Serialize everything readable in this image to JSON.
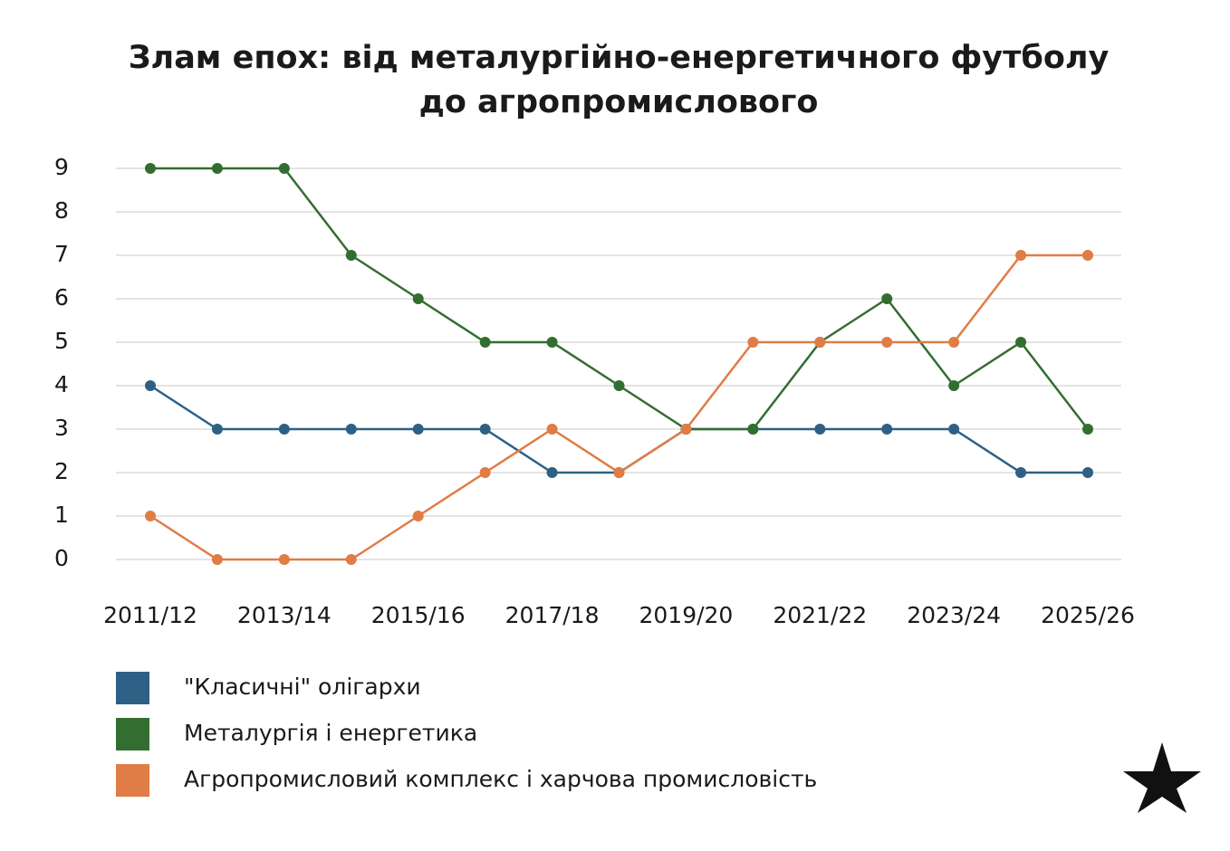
{
  "chart_data": {
    "type": "line",
    "title": [
      "Злам епох: від металургійно-енергетичного футболу",
      "до агропромислового"
    ],
    "categories": [
      "2011/12",
      null,
      "2013/14",
      null,
      "2015/16",
      null,
      "2017/18",
      null,
      "2019/20",
      null,
      "2021/22",
      null,
      "2023/24",
      null,
      "2025/26"
    ],
    "series": [
      {
        "name": "\"Класичні\" олігархи",
        "color": "#2e6085",
        "values": [
          4,
          3,
          3,
          3,
          3,
          3,
          2,
          2,
          3,
          3,
          3,
          3,
          3,
          2,
          2
        ]
      },
      {
        "name": "Металургія і енергетика",
        "color": "#336e31",
        "values": [
          9,
          9,
          9,
          7,
          6,
          5,
          5,
          4,
          3,
          3,
          5,
          6,
          4,
          5,
          3
        ]
      },
      {
        "name": "Агропромисловий комплекс і харчова промисловість",
        "color": "#e07c45",
        "values": [
          1,
          0,
          0,
          0,
          1,
          2,
          3,
          2,
          3,
          5,
          5,
          5,
          5,
          7,
          7
        ]
      }
    ],
    "ylim": [
      0,
      9
    ],
    "yticks": [
      0,
      1,
      2,
      3,
      4,
      5,
      6,
      7,
      8,
      9
    ],
    "grid": true
  }
}
